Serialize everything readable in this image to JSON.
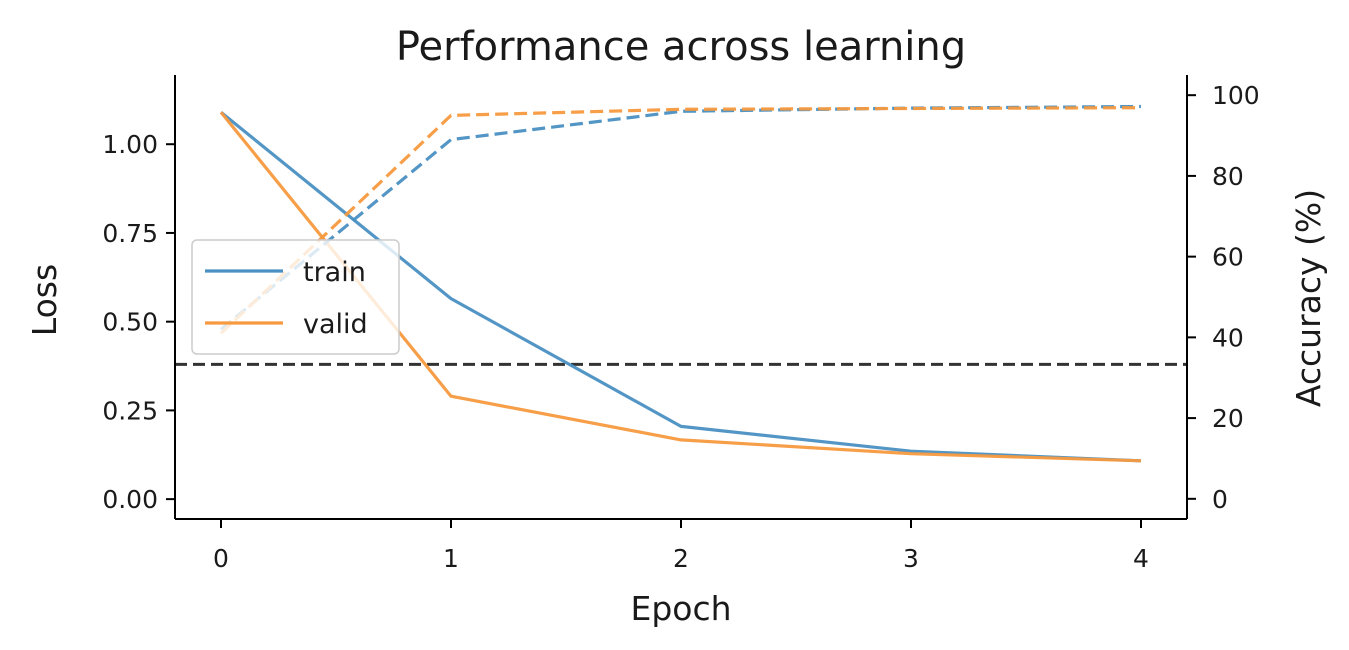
{
  "chart_data": {
    "type": "line",
    "title": "Performance across learning",
    "xlabel": "Epoch",
    "ylabel": "Loss",
    "y2label": "Accuracy (%)",
    "x": [
      0,
      1,
      2,
      3,
      4
    ],
    "xticks": [
      "0",
      "1",
      "2",
      "3",
      "4"
    ],
    "xlim": [
      -0.2,
      4.2
    ],
    "ylim": [
      -0.056,
      1.195
    ],
    "yticks": [
      "0.00",
      "0.25",
      "0.50",
      "0.75",
      "1.00"
    ],
    "y2lim": [
      -5,
      105
    ],
    "y2ticks": [
      "0",
      "20",
      "40",
      "60",
      "80",
      "100"
    ],
    "series": [
      {
        "name": "train",
        "axis": "left",
        "style": "solid",
        "color": "#4a90c2",
        "values": [
          1.09,
          0.565,
          0.205,
          0.135,
          0.108
        ]
      },
      {
        "name": "valid",
        "axis": "left",
        "style": "solid",
        "color": "#f7993e",
        "values": [
          1.09,
          0.29,
          0.167,
          0.128,
          0.108
        ]
      },
      {
        "axis": "right",
        "style": "dashed",
        "color": "#4a90c2",
        "values": [
          42,
          89,
          96,
          96.8,
          97.2
        ]
      },
      {
        "axis": "right",
        "style": "dashed",
        "color": "#f7993e",
        "values": [
          41,
          95,
          96.5,
          96.7,
          96.9
        ]
      }
    ],
    "reference_line": {
      "axis": "right",
      "value": 33.3,
      "style": "dashed",
      "color": "#333333"
    },
    "legend": {
      "placement": "center-left",
      "entries": [
        "train",
        "valid"
      ]
    },
    "grid": false
  }
}
